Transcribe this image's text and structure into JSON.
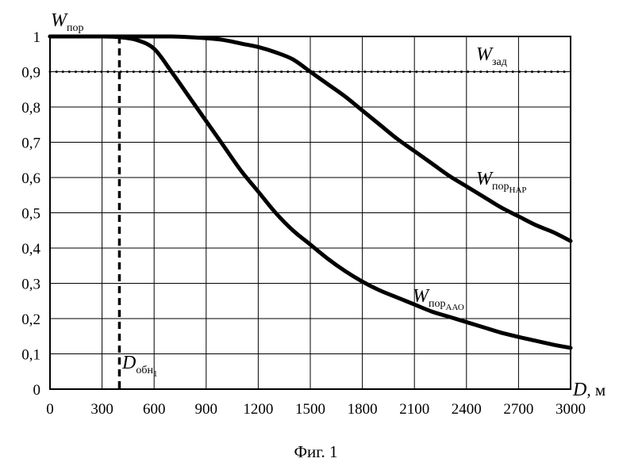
{
  "chart_data": {
    "type": "line",
    "title": "",
    "caption": "Фиг. 1",
    "ylabel": {
      "main": "W",
      "sub": "пор"
    },
    "xlabel": {
      "main": "D",
      "unit": ", м"
    },
    "xlim": [
      0,
      3000
    ],
    "ylim": [
      0,
      1
    ],
    "xticks": [
      0,
      300,
      600,
      900,
      1200,
      1500,
      1800,
      2100,
      2400,
      2700,
      3000
    ],
    "yticks": [
      0,
      0.1,
      0.2,
      0.3,
      0.4,
      0.5,
      0.6,
      0.7,
      0.8,
      0.9,
      1
    ],
    "ytick_labels": [
      "0",
      "0,1",
      "0,2",
      "0,3",
      "0,4",
      "0,5",
      "0,6",
      "0,7",
      "0,8",
      "0,9",
      "1"
    ],
    "xtick_labels": [
      "0",
      "300",
      "600",
      "900",
      "1200",
      "1500",
      "1800",
      "2100",
      "2400",
      "2700",
      "3000"
    ],
    "grid": true,
    "series": [
      {
        "id": "nap",
        "label": {
          "main": "W",
          "sub": "пор",
          "subsub": "НАР"
        },
        "x": [
          0,
          300,
          500,
          600,
          700,
          800,
          900,
          1000,
          1100,
          1200,
          1300,
          1400,
          1500,
          1600,
          1700,
          1800,
          1900,
          2000,
          2100,
          2200,
          2300,
          2400,
          2500,
          2600,
          2700,
          2800,
          2900,
          3000
        ],
        "y": [
          1.0,
          1.0,
          1.0,
          1.0,
          1.0,
          0.998,
          0.995,
          0.99,
          0.98,
          0.97,
          0.955,
          0.935,
          0.9,
          0.865,
          0.83,
          0.79,
          0.75,
          0.71,
          0.675,
          0.64,
          0.605,
          0.575,
          0.545,
          0.515,
          0.49,
          0.465,
          0.445,
          0.42
        ]
      },
      {
        "id": "aao",
        "label": {
          "main": "W",
          "sub": "пор",
          "subsub": "ААО"
        },
        "x": [
          0,
          300,
          400,
          500,
          600,
          700,
          800,
          900,
          1000,
          1100,
          1200,
          1300,
          1400,
          1500,
          1600,
          1700,
          1800,
          1900,
          2000,
          2100,
          2200,
          2300,
          2400,
          2500,
          2600,
          2700,
          2800,
          2900,
          3000
        ],
        "y": [
          1.0,
          1.0,
          0.998,
          0.99,
          0.965,
          0.9,
          0.83,
          0.76,
          0.69,
          0.62,
          0.56,
          0.5,
          0.45,
          0.41,
          0.37,
          0.335,
          0.305,
          0.28,
          0.26,
          0.24,
          0.22,
          0.205,
          0.19,
          0.175,
          0.16,
          0.148,
          0.137,
          0.126,
          0.117
        ]
      }
    ],
    "threshold": {
      "y": 0.9,
      "label": {
        "main": "W",
        "sub": "зад"
      }
    },
    "detection": {
      "x": 400,
      "label": {
        "main": "D",
        "sub": "обн",
        "subsub": "1"
      }
    }
  }
}
